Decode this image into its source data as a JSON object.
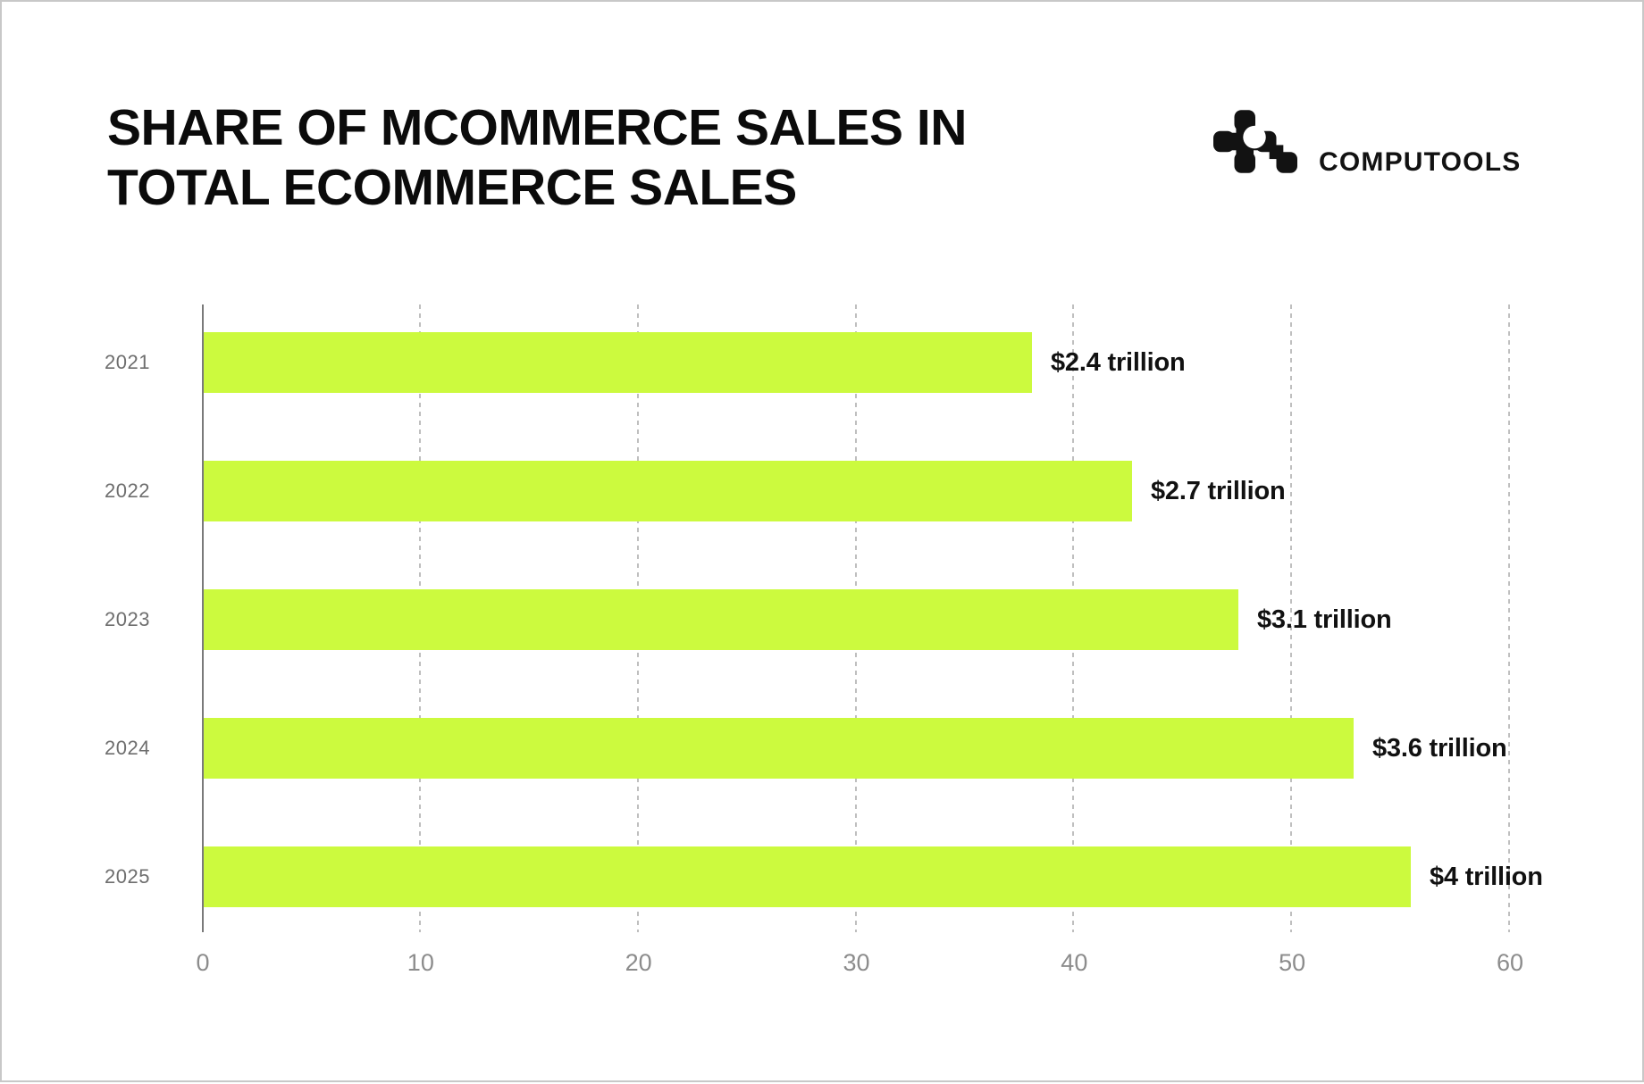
{
  "header": {
    "title_line1": "SHARE OF MCOMMERCE SALES IN",
    "title_line2": "TOTAL ECOMMERCE SALES",
    "brand": "COMPUTOOLS"
  },
  "colors": {
    "bar": "#CCFA3E",
    "axis_line": "#7A7A7A",
    "gridline": "#BFBFBF",
    "x_tick_label": "#8C8C8C",
    "year_label": "#6E6E6E",
    "text": "#0B0B0B",
    "background": "#FFFFFF"
  },
  "chart_data": {
    "type": "bar",
    "orientation": "horizontal",
    "title": "SHARE OF MCOMMERCE SALES IN TOTAL ECOMMERCE SALES",
    "categories": [
      "2021",
      "2022",
      "2023",
      "2024",
      "2025"
    ],
    "values": [
      38,
      42.6,
      47.5,
      52.8,
      55.4
    ],
    "value_labels": [
      "$2.4 trillion",
      "$2.7 trillion",
      "$3.1 trillion",
      "$3.6 trillion",
      "$4 trillion"
    ],
    "xlabel": "",
    "ylabel": "",
    "xlim": [
      0,
      60
    ],
    "xticks": [
      0,
      10,
      20,
      30,
      40,
      50,
      60
    ],
    "grid": "vertical-dashed",
    "legend": "none"
  }
}
